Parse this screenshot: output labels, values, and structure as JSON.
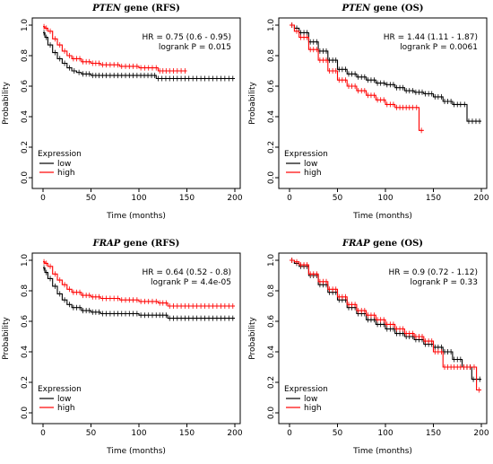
{
  "chart_data": [
    {
      "type": "line",
      "subtype": "kaplan-meier",
      "title_gene": "PTEN",
      "title_rest": " gene (RFS)",
      "xlabel": "Time (months)",
      "ylabel": "Probability",
      "xlim": [
        0,
        200
      ],
      "ylim": [
        0,
        1
      ],
      "xticks": [
        "0",
        "50",
        "100",
        "150",
        "200"
      ],
      "yticks": [
        "0.0",
        "0.2",
        "0.4",
        "0.6",
        "0.8",
        "1.0"
      ],
      "stats": [
        "HR = 0.75 (0.6 - 0.95)",
        "logrank P = 0.015"
      ],
      "legend_title": "Expression",
      "legend_position": "bottom-left",
      "series": [
        {
          "name": "low",
          "color": "#000000",
          "x": [
            0,
            2,
            5,
            10,
            15,
            20,
            25,
            30,
            35,
            40,
            50,
            60,
            80,
            100,
            115,
            118,
            130,
            150,
            175,
            200
          ],
          "y": [
            0.95,
            0.92,
            0.87,
            0.82,
            0.78,
            0.75,
            0.72,
            0.7,
            0.69,
            0.68,
            0.67,
            0.67,
            0.67,
            0.67,
            0.67,
            0.65,
            0.65,
            0.65,
            0.65,
            0.65
          ]
        },
        {
          "name": "high",
          "color": "#ff0000",
          "x": [
            0,
            2,
            5,
            10,
            15,
            20,
            25,
            30,
            40,
            50,
            60,
            80,
            100,
            120,
            130,
            150
          ],
          "y": [
            0.99,
            0.98,
            0.96,
            0.91,
            0.87,
            0.83,
            0.8,
            0.78,
            0.76,
            0.75,
            0.74,
            0.73,
            0.72,
            0.7,
            0.7,
            0.7
          ]
        }
      ]
    },
    {
      "type": "line",
      "subtype": "kaplan-meier",
      "title_gene": "PTEN",
      "title_rest": " gene (OS)",
      "xlabel": "Time (months)",
      "ylabel": "Probability",
      "xlim": [
        0,
        200
      ],
      "ylim": [
        0,
        1
      ],
      "xticks": [
        "0",
        "50",
        "100",
        "150",
        "200"
      ],
      "yticks": [
        "0.0",
        "0.2",
        "0.4",
        "0.6",
        "0.8",
        "1.0"
      ],
      "stats": [
        "HR = 1.44 (1.11 - 1.87)",
        "logrank P = 0.0061"
      ],
      "legend_title": "Expression",
      "legend_position": "bottom-left",
      "series": [
        {
          "name": "low",
          "color": "#000000",
          "x": [
            0,
            5,
            10,
            20,
            30,
            40,
            50,
            60,
            70,
            80,
            90,
            100,
            110,
            120,
            130,
            140,
            150,
            160,
            170,
            180,
            185,
            200
          ],
          "y": [
            1.0,
            0.98,
            0.95,
            0.89,
            0.83,
            0.77,
            0.71,
            0.68,
            0.66,
            0.64,
            0.62,
            0.61,
            0.59,
            0.57,
            0.56,
            0.55,
            0.53,
            0.5,
            0.48,
            0.48,
            0.37,
            0.37
          ]
        },
        {
          "name": "high",
          "color": "#ff0000",
          "x": [
            0,
            5,
            10,
            20,
            30,
            40,
            50,
            60,
            70,
            80,
            90,
            100,
            110,
            120,
            130,
            135,
            140
          ],
          "y": [
            1.0,
            0.96,
            0.92,
            0.84,
            0.77,
            0.7,
            0.64,
            0.6,
            0.57,
            0.54,
            0.51,
            0.48,
            0.46,
            0.46,
            0.46,
            0.31,
            0.31
          ]
        }
      ]
    },
    {
      "type": "line",
      "subtype": "kaplan-meier",
      "title_gene": "FRAP",
      "title_rest": " gene (RFS)",
      "xlabel": "Time (months)",
      "ylabel": "Probability",
      "xlim": [
        0,
        200
      ],
      "ylim": [
        0,
        1
      ],
      "xticks": [
        "0",
        "50",
        "100",
        "150",
        "200"
      ],
      "yticks": [
        "0.0",
        "0.2",
        "0.4",
        "0.6",
        "0.8",
        "1.0"
      ],
      "stats": [
        "HR = 0.64 (0.52 - 0.8)",
        "logrank P = 4.4e-05"
      ],
      "legend_title": "Expression",
      "legend_position": "bottom-left",
      "series": [
        {
          "name": "low",
          "color": "#000000",
          "x": [
            0,
            2,
            5,
            10,
            15,
            20,
            25,
            30,
            40,
            50,
            60,
            80,
            100,
            120,
            130,
            150,
            175,
            200
          ],
          "y": [
            0.95,
            0.92,
            0.88,
            0.83,
            0.78,
            0.74,
            0.71,
            0.69,
            0.67,
            0.66,
            0.65,
            0.65,
            0.64,
            0.64,
            0.62,
            0.62,
            0.62,
            0.62
          ]
        },
        {
          "name": "high",
          "color": "#ff0000",
          "x": [
            0,
            2,
            5,
            10,
            15,
            20,
            25,
            30,
            40,
            50,
            60,
            80,
            100,
            120,
            130,
            150,
            175,
            200
          ],
          "y": [
            0.99,
            0.98,
            0.96,
            0.91,
            0.87,
            0.84,
            0.81,
            0.79,
            0.77,
            0.76,
            0.75,
            0.74,
            0.73,
            0.72,
            0.7,
            0.7,
            0.7,
            0.7
          ]
        }
      ]
    },
    {
      "type": "line",
      "subtype": "kaplan-meier",
      "title_gene": "FRAP",
      "title_rest": " gene (OS)",
      "xlabel": "Time (months)",
      "ylabel": "Probability",
      "xlim": [
        0,
        200
      ],
      "ylim": [
        0,
        1
      ],
      "xticks": [
        "0",
        "50",
        "100",
        "150",
        "200"
      ],
      "yticks": [
        "0.0",
        "0.2",
        "0.4",
        "0.6",
        "0.8",
        "1.0"
      ],
      "stats": [
        "HR = 0.9 (0.72 - 1.12)",
        "logrank P = 0.33"
      ],
      "legend_title": "Expression",
      "legend_position": "bottom-left",
      "series": [
        {
          "name": "low",
          "color": "#000000",
          "x": [
            0,
            5,
            10,
            20,
            30,
            40,
            50,
            60,
            70,
            80,
            90,
            100,
            110,
            120,
            130,
            140,
            150,
            160,
            170,
            180,
            190,
            200
          ],
          "y": [
            1.0,
            0.98,
            0.96,
            0.9,
            0.84,
            0.79,
            0.74,
            0.69,
            0.65,
            0.61,
            0.58,
            0.55,
            0.52,
            0.5,
            0.48,
            0.45,
            0.43,
            0.4,
            0.35,
            0.3,
            0.22,
            0.22
          ]
        },
        {
          "name": "high",
          "color": "#ff0000",
          "x": [
            0,
            5,
            10,
            20,
            30,
            40,
            50,
            60,
            70,
            80,
            90,
            100,
            110,
            120,
            130,
            140,
            150,
            160,
            170,
            180,
            190,
            195,
            200
          ],
          "y": [
            1.0,
            0.99,
            0.97,
            0.91,
            0.86,
            0.81,
            0.76,
            0.71,
            0.67,
            0.64,
            0.61,
            0.58,
            0.55,
            0.52,
            0.5,
            0.47,
            0.4,
            0.3,
            0.3,
            0.3,
            0.3,
            0.15,
            0.15
          ]
        }
      ]
    }
  ]
}
